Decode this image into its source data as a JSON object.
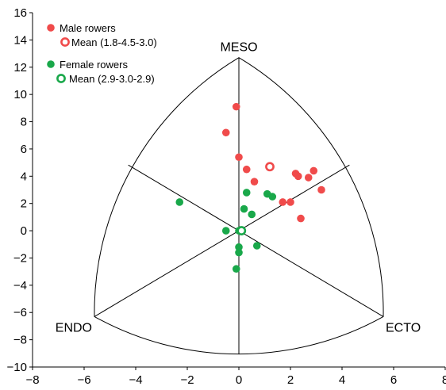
{
  "chart_data": {
    "type": "scatter",
    "title": "",
    "xlabel": "",
    "ylabel": "",
    "xlim": [
      -8,
      8
    ],
    "ylim": [
      -10,
      16
    ],
    "x_ticks": [
      -8,
      -6,
      -4,
      -2,
      0,
      2,
      4,
      6,
      8
    ],
    "y_ticks": [
      -10,
      -8,
      -6,
      -4,
      -2,
      0,
      2,
      4,
      6,
      8,
      10,
      12,
      14,
      16
    ],
    "x_tick_labels": [
      "−8",
      "−6",
      "−4",
      "−2",
      "0",
      "2",
      "4",
      "6",
      "8"
    ],
    "y_tick_labels": [
      "−10",
      "−8",
      "−6",
      "−4",
      "−2",
      "0",
      "2",
      "4",
      "6",
      "8",
      "10",
      "12",
      "14",
      "16"
    ],
    "grid": false,
    "somatochart": {
      "vertices": {
        "meso": [
          0,
          12.7
        ],
        "endo": [
          -5.6,
          -6.3
        ],
        "ecto": [
          5.6,
          -6.3
        ]
      },
      "labels": {
        "meso": "MESO",
        "endo": "ENDO",
        "ecto": "ECTO"
      }
    },
    "legend": {
      "placement": "top-left",
      "entries": [
        {
          "label": "Male rowers",
          "color": "#f04b4b",
          "marker": "filled-circle"
        },
        {
          "label": "Mean (1.8-4.5-3.0)",
          "color": "#f04b4b",
          "marker": "hollow-circle"
        },
        {
          "label": "Female rowers",
          "color": "#19a84a",
          "marker": "filled-circle"
        },
        {
          "label": "Mean (2.9-3.0-2.9)",
          "color": "#19a84a",
          "marker": "hollow-circle"
        }
      ]
    },
    "series": [
      {
        "name": "Male rowers",
        "color": "#f04b4b",
        "points": [
          [
            -0.1,
            9.1
          ],
          [
            -0.5,
            7.2
          ],
          [
            0.0,
            5.4
          ],
          [
            0.3,
            4.5
          ],
          [
            0.6,
            3.6
          ],
          [
            2.2,
            4.2
          ],
          [
            2.3,
            4.0
          ],
          [
            2.7,
            3.9
          ],
          [
            2.9,
            4.4
          ],
          [
            3.2,
            3.0
          ],
          [
            1.7,
            2.1
          ],
          [
            2.0,
            2.1
          ],
          [
            2.4,
            0.9
          ]
        ]
      },
      {
        "name": "Mean (1.8-4.5-3.0)",
        "color": "#f04b4b",
        "hollow": true,
        "points": [
          [
            1.2,
            4.7
          ]
        ]
      },
      {
        "name": "Female rowers",
        "color": "#19a84a",
        "points": [
          [
            -2.3,
            2.1
          ],
          [
            0.3,
            2.8
          ],
          [
            1.1,
            2.7
          ],
          [
            1.3,
            2.5
          ],
          [
            0.2,
            1.6
          ],
          [
            0.5,
            1.2
          ],
          [
            -0.5,
            0.0
          ],
          [
            0.0,
            0.0
          ],
          [
            0.1,
            0.0
          ],
          [
            0.0,
            -1.2
          ],
          [
            0.0,
            -1.6
          ],
          [
            0.7,
            -1.1
          ],
          [
            -0.1,
            -2.8
          ]
        ]
      },
      {
        "name": "Mean (2.9-3.0-2.9)",
        "color": "#19a84a",
        "hollow": true,
        "points": [
          [
            0.1,
            0.0
          ]
        ]
      }
    ]
  }
}
